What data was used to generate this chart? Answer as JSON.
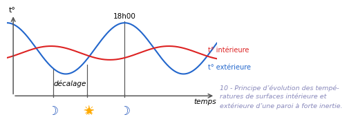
{
  "bg_color": "#ffffff",
  "line_interior_color": "#dd2222",
  "line_exterior_color": "#2266cc",
  "interior_label": "t° intérieure",
  "exterior_label": "t° extérieure",
  "y_axis_label": "t°",
  "x_axis_label": "temps",
  "decalage_label": "décalage",
  "time_label": "18h00",
  "caption_line1": "10 - Principe d’évolution des tempé-",
  "caption_line2": "ratures de surfaces intérieure et",
  "caption_line3": "extérieure d’une paroi à forte inertie.",
  "caption_color": "#8888bb",
  "caption_fontsize": 6.8,
  "moon_color": "#2255bb",
  "sun_color": "#ffaa00",
  "tick_color": "#555555",
  "axis_color": "#555555"
}
